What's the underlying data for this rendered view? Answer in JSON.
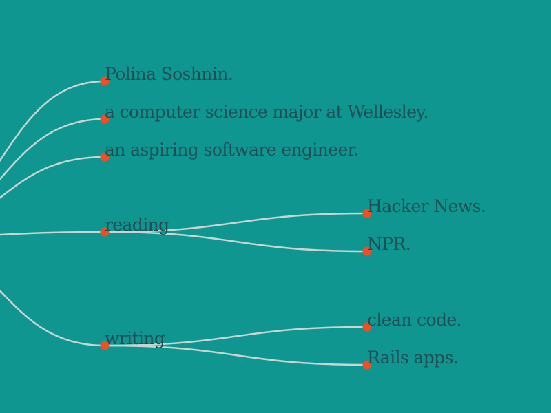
{
  "colors": {
    "background": "#0f9690",
    "link": "#c9d4d3",
    "node": "#f04e23",
    "text": "#1f4e57"
  },
  "tree": {
    "root": "",
    "children": [
      {
        "label": "Polina Soshnin."
      },
      {
        "label": "a computer science major at Wellesley."
      },
      {
        "label": "an aspiring software engineer."
      },
      {
        "label": "reading",
        "children": [
          {
            "label": "Hacker News."
          },
          {
            "label": "NPR."
          }
        ]
      },
      {
        "label": "writing",
        "children": [
          {
            "label": "clean code."
          },
          {
            "label": "Rails apps."
          }
        ]
      }
    ]
  }
}
